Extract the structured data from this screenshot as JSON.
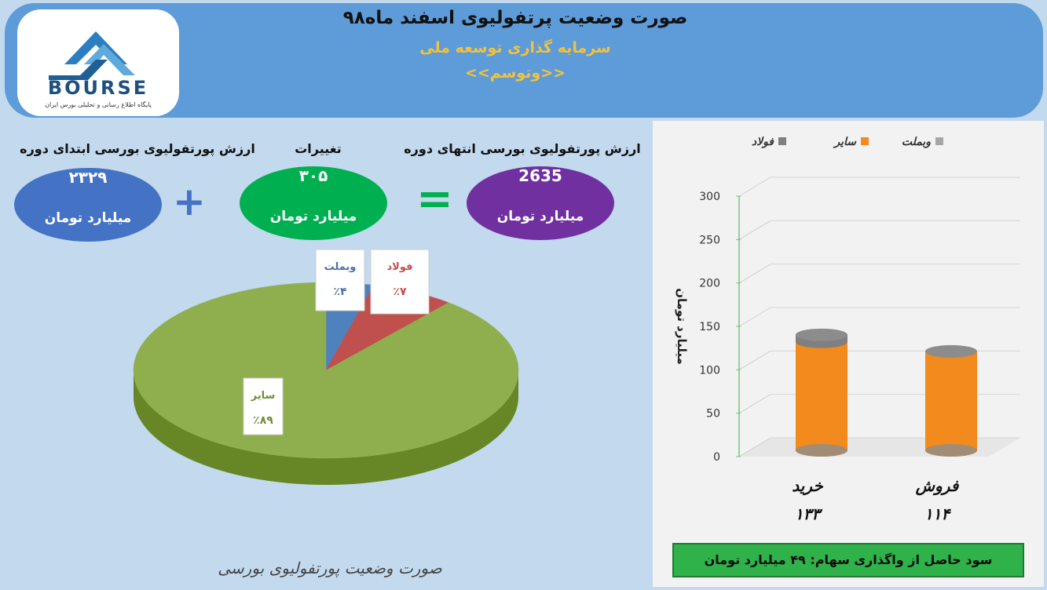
{
  "header": {
    "title": "صورت وضعیت پرتفولیوی اسفند ماه۹۸",
    "subtitle": "سرمایه گذاری توسعه ملی",
    "symbol": "<<وتوسم>>"
  },
  "logo": {
    "text": "BOURSE",
    "tagline": "پایگاه اطلاع رسانی و تحلیلی بورس ایران"
  },
  "summary": {
    "start_label": "ارزش پورتفولیوی بورسی ابتدای دوره",
    "start_value": "۲۳۲۹",
    "change_label": "تغییرات",
    "change_value": "۳۰۵",
    "end_label": "ارزش پورتفولیوی بورسی انتهای دوره",
    "end_value": "2635",
    "unit": "میلیارد تومان",
    "plus": "+",
    "equals": "="
  },
  "colors": {
    "blue": "#4472c4",
    "green": "#00b050",
    "purple": "#7030a0",
    "pie_green": "#8faf4f",
    "pie_blue": "#4f81bd",
    "pie_red": "#c0504d",
    "bar_orange": "#f28a1d",
    "bar_gray": "#a6a6a6"
  },
  "chart_data": [
    {
      "type": "pie",
      "slices": [
        {
          "name": "سایر",
          "label": "٪۸۹",
          "value": 89,
          "color": "#8faf4f"
        },
        {
          "name": "وبملت",
          "label": "٪۴",
          "value": 4,
          "color": "#4f81bd"
        },
        {
          "name": "فولاد",
          "label": "٪۷",
          "value": 7,
          "color": "#c0504d"
        }
      ],
      "caption": "صورت وضعیت پورتفولیوی بورسی"
    },
    {
      "type": "bar",
      "categories": [
        "خرید",
        "فروش"
      ],
      "category_totals": [
        "۱۳۳",
        "۱۱۴"
      ],
      "series": [
        {
          "name": "وبملت",
          "values": [
            0,
            0
          ],
          "color": "#a6a6a6"
        },
        {
          "name": "سایر",
          "values": [
            125,
            114
          ],
          "color": "#f28a1d"
        },
        {
          "name": "فولاد",
          "values": [
            8,
            0
          ],
          "color": "#7f7f7f"
        }
      ],
      "ylabel": "میلیارد تومان",
      "ylim": [
        0,
        300
      ],
      "yticks": [
        0,
        50,
        100,
        150,
        200,
        250,
        300
      ],
      "legend_position": "top"
    }
  ],
  "profit": {
    "text": "سود حاصل از واگذاری سهام:  ۴۹  میلیارد تومان"
  }
}
